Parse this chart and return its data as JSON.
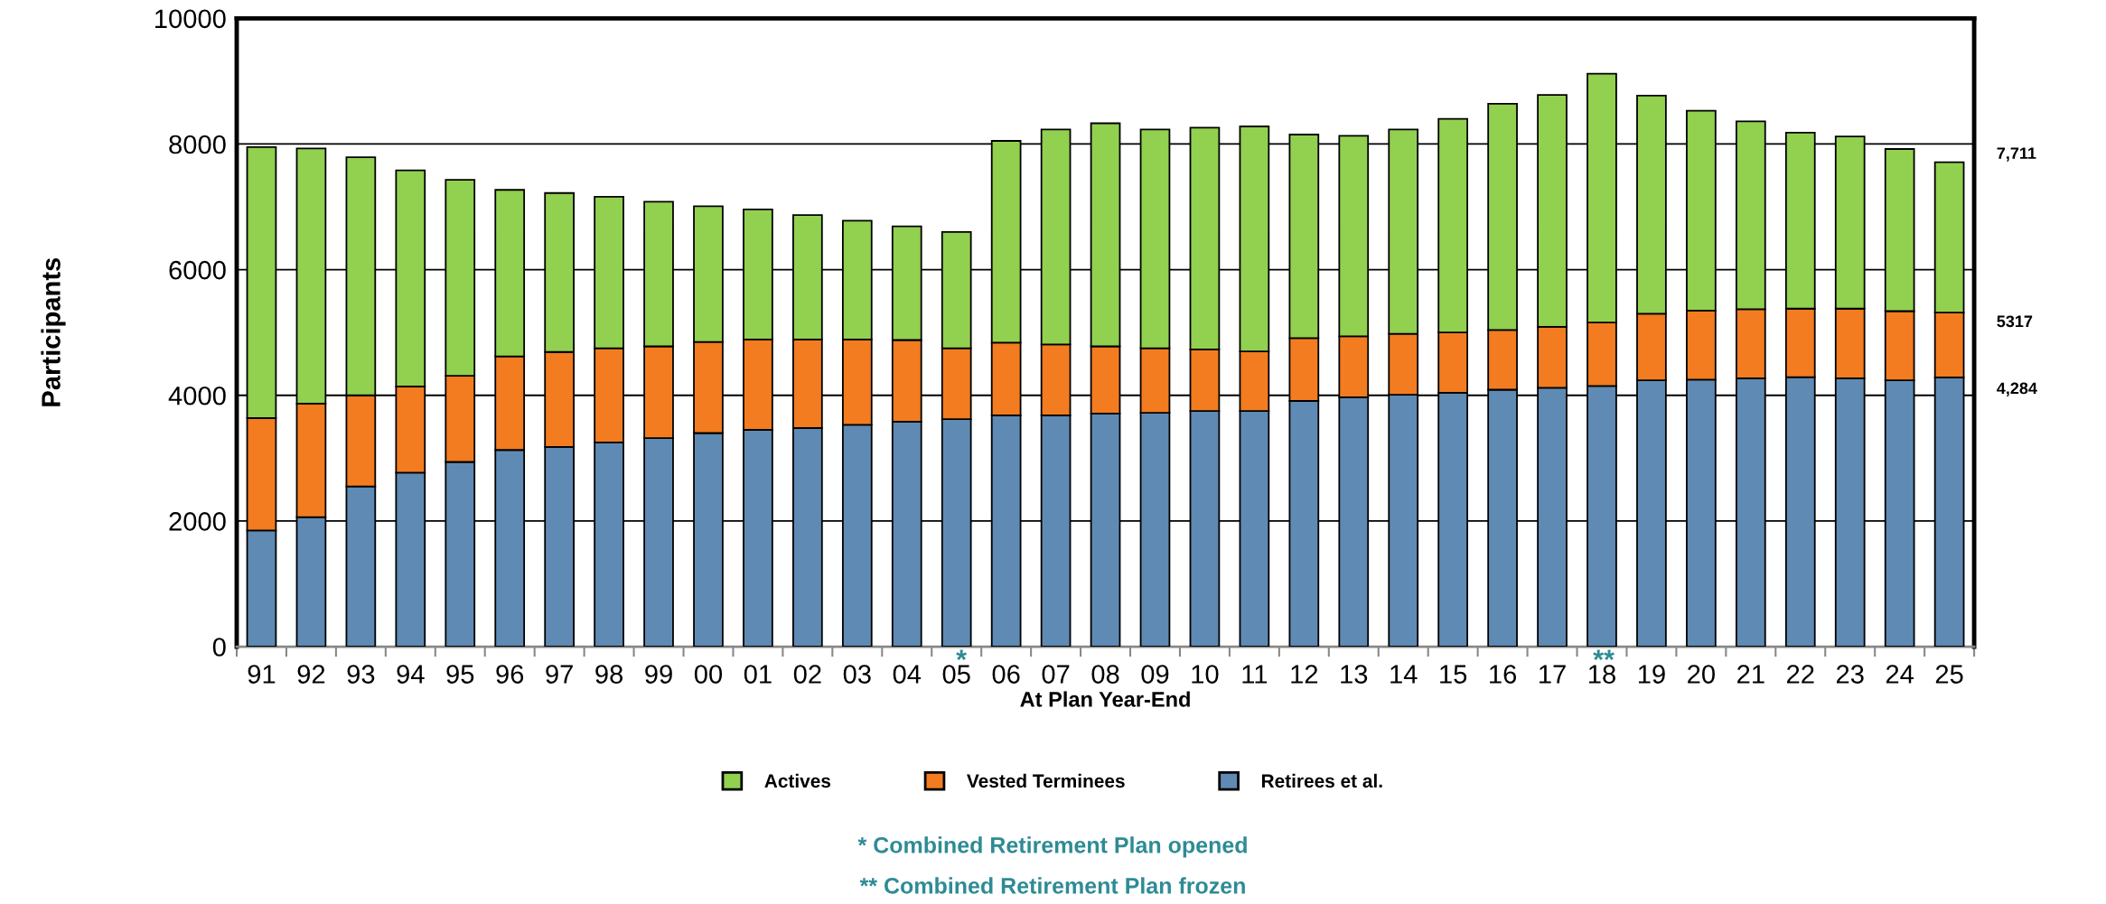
{
  "chart_data": {
    "type": "bar",
    "stacked": true,
    "ylabel": "Participants",
    "xlabel": "At Plan Year-End",
    "categories": [
      "91",
      "92",
      "93",
      "94",
      "95",
      "96",
      "97",
      "98",
      "99",
      "00",
      "01",
      "02",
      "03",
      "04",
      "05",
      "06",
      "07",
      "08",
      "09",
      "10",
      "11",
      "12",
      "13",
      "14",
      "15",
      "16",
      "17",
      "18",
      "19",
      "20",
      "21",
      "22",
      "23",
      "24",
      "25"
    ],
    "series": [
      {
        "name": "Retirees et al.",
        "color": "#5f8ab4",
        "values": [
          1850,
          2060,
          2550,
          2770,
          2940,
          3130,
          3180,
          3250,
          3320,
          3400,
          3450,
          3480,
          3530,
          3580,
          3620,
          3680,
          3680,
          3710,
          3720,
          3750,
          3750,
          3910,
          3970,
          4010,
          4040,
          4090,
          4120,
          4150,
          4240,
          4250,
          4270,
          4290,
          4270,
          4240,
          4284
        ]
      },
      {
        "name": "Vested Terminees",
        "color": "#f27c1f",
        "values": [
          1790,
          1810,
          1450,
          1370,
          1370,
          1490,
          1510,
          1500,
          1460,
          1450,
          1440,
          1410,
          1360,
          1300,
          1130,
          1160,
          1130,
          1070,
          1030,
          980,
          950,
          1000,
          970,
          970,
          960,
          950,
          970,
          1010,
          1060,
          1100,
          1100,
          1090,
          1110,
          1100,
          1033
        ]
      },
      {
        "name": "Actives",
        "color": "#92d050",
        "values": [
          4310,
          4060,
          3790,
          3440,
          3120,
          2650,
          2530,
          2410,
          2300,
          2160,
          2070,
          1980,
          1890,
          1810,
          1850,
          3210,
          3420,
          3550,
          3480,
          3530,
          3580,
          3240,
          3190,
          3250,
          3400,
          3600,
          3690,
          3960,
          3470,
          3180,
          2990,
          2800,
          2740,
          2580,
          2394
        ]
      }
    ],
    "ylim": [
      0,
      10000
    ],
    "yticks": [
      0,
      2000,
      4000,
      6000,
      8000,
      10000
    ],
    "grid": "y",
    "legend": "bottom",
    "annotations": [
      "7,711",
      "5317",
      "4,284",
      "*",
      "**",
      "* Combined Retirement Plan opened",
      "** Combined Retirement Plan frozen"
    ]
  }
}
